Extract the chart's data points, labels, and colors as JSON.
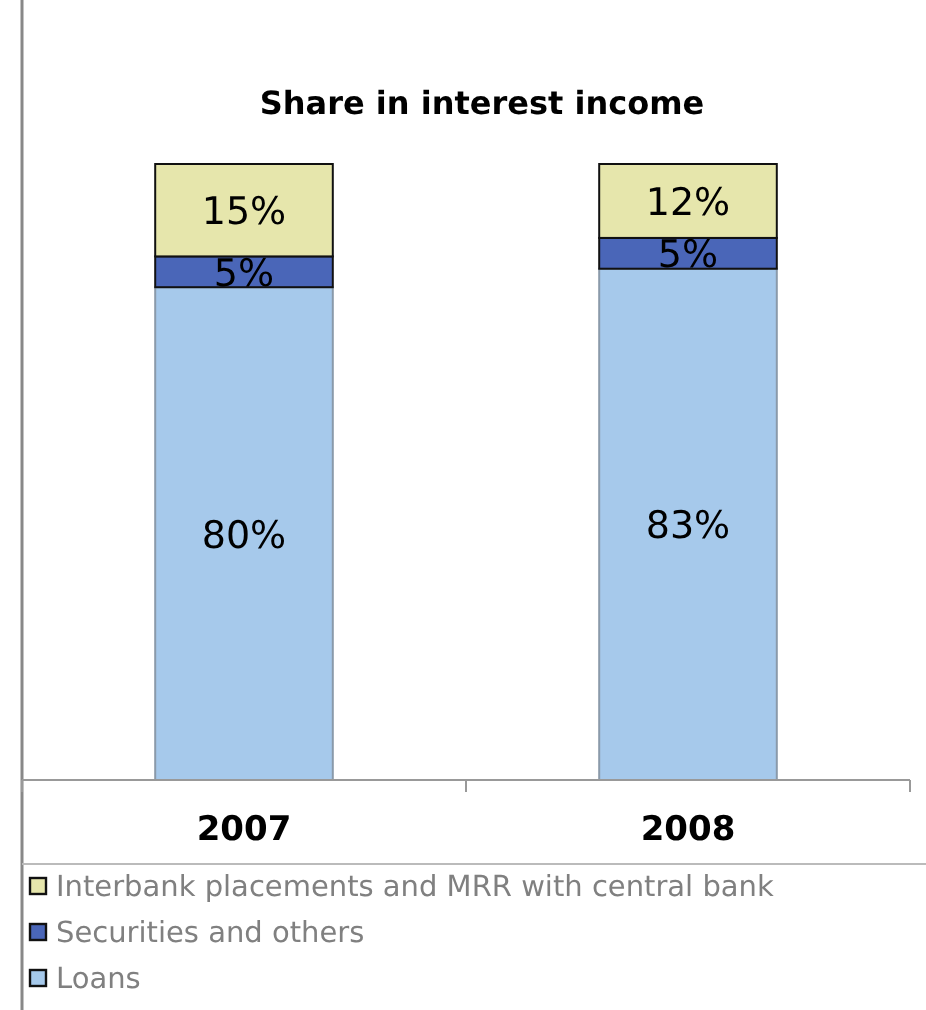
{
  "chart_data": {
    "type": "bar",
    "title": "Share in interest income",
    "categories": [
      "2007",
      "2008"
    ],
    "stacked": true,
    "legend": "bottom",
    "series": [
      {
        "name": "Loans",
        "color": "#a6c9eb",
        "values": [
          80,
          83
        ],
        "value_labels": [
          "80%",
          "83%"
        ]
      },
      {
        "name": "Securities and others",
        "color": "#4a66b8",
        "values": [
          5,
          5
        ],
        "value_labels": [
          "5%",
          "5%"
        ]
      },
      {
        "name": "Interbank placements and MRR with central bank",
        "color": "#e6e6ac",
        "values": [
          15,
          12
        ],
        "value_labels": [
          "15%",
          "12%"
        ]
      }
    ]
  }
}
